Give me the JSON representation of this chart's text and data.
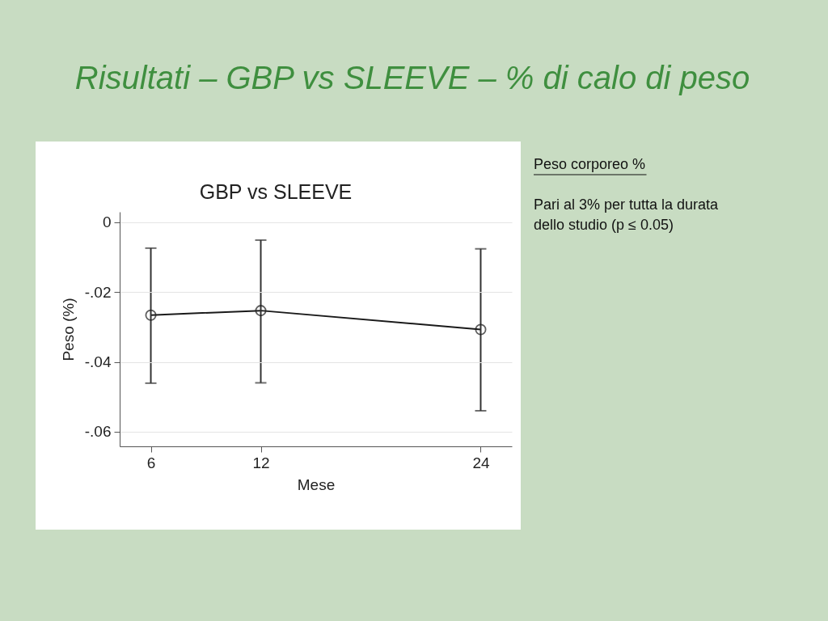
{
  "chart_data": {
    "type": "line",
    "title": "Risultati –  GBP vs SLEEVE – % di calo di peso",
    "subtitle": "GBP vs SLEEVE",
    "xlabel": "Mese",
    "ylabel": "Peso (%)",
    "x": [
      6,
      12,
      24
    ],
    "series": [
      {
        "color": "#1a1a1a",
        "values": [
          -0.0266,
          -0.0253,
          -0.0307
        ],
        "errors": [
          [
            -0.0461,
            -0.0074
          ],
          [
            -0.046,
            -0.0051
          ],
          [
            -0.054,
            -0.0076
          ]
        ]
      }
    ],
    "xlim": [
      4.3,
      25.7
    ],
    "xticks": [
      6,
      12,
      24
    ],
    "ylim": [
      -0.0642,
      0.003
    ],
    "yticks": [
      0,
      {
        "value": -0.02,
        "label": "-.02"
      },
      {
        "value": -0.04,
        "label": "-.04"
      },
      {
        "value": -0.06,
        "label": "-.06"
      }
    ],
    "grid": "y",
    "marker": "circle",
    "line_style": "solid",
    "annotations": [
      "Peso corporeo %",
      "Pari al 3%  per tutta la durata dello studio (p ≤ 0.05)"
    ]
  }
}
